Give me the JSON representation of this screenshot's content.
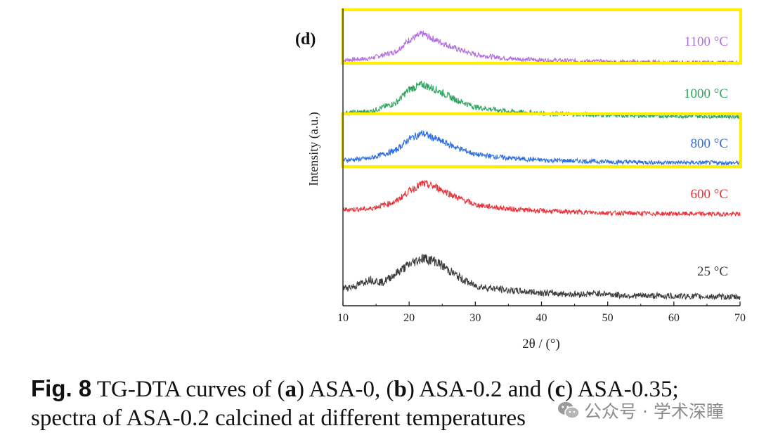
{
  "chart_data": {
    "type": "line",
    "panel_label": "(d)",
    "xlabel": "2θ / (°)",
    "ylabel": "Intensity (a.u.)",
    "xlim": [
      10,
      70
    ],
    "xticks": [
      "10",
      "20",
      "30",
      "40",
      "50",
      "60",
      "70"
    ],
    "y_ticks_shown": false,
    "legend": "inline labels at right end of each curve",
    "series": [
      {
        "name": "1100 °C",
        "color": "#b36ee0",
        "peak_2theta": 22,
        "highlighted": true,
        "profile": [
          [
            10,
            0.1
          ],
          [
            14,
            0.14
          ],
          [
            18,
            0.32
          ],
          [
            20,
            0.62
          ],
          [
            22,
            0.78
          ],
          [
            24,
            0.62
          ],
          [
            27,
            0.4
          ],
          [
            30,
            0.24
          ],
          [
            35,
            0.14
          ],
          [
            40,
            0.1
          ],
          [
            50,
            0.06
          ],
          [
            60,
            0.04
          ],
          [
            70,
            0.03
          ]
        ]
      },
      {
        "name": "1000 °C",
        "color": "#2ea660",
        "peak_2theta": 22,
        "highlighted": false,
        "profile": [
          [
            10,
            0.12
          ],
          [
            14,
            0.15
          ],
          [
            18,
            0.36
          ],
          [
            20,
            0.68
          ],
          [
            22,
            0.8
          ],
          [
            24,
            0.68
          ],
          [
            27,
            0.44
          ],
          [
            30,
            0.26
          ],
          [
            35,
            0.16
          ],
          [
            40,
            0.11
          ],
          [
            50,
            0.07
          ],
          [
            60,
            0.05
          ],
          [
            70,
            0.04
          ]
        ]
      },
      {
        "name": "800 °C",
        "color": "#2f6fe0",
        "peak_2theta": 22,
        "highlighted": true,
        "profile": [
          [
            10,
            0.1
          ],
          [
            14,
            0.14
          ],
          [
            18,
            0.34
          ],
          [
            20,
            0.62
          ],
          [
            22,
            0.76
          ],
          [
            24,
            0.62
          ],
          [
            27,
            0.42
          ],
          [
            30,
            0.24
          ],
          [
            35,
            0.15
          ],
          [
            40,
            0.1
          ],
          [
            50,
            0.06
          ],
          [
            60,
            0.04
          ],
          [
            70,
            0.03
          ]
        ]
      },
      {
        "name": "600 °C",
        "color": "#e8333a",
        "peak_2theta": 22.5,
        "highlighted": false,
        "profile": [
          [
            10,
            0.16
          ],
          [
            14,
            0.18
          ],
          [
            18,
            0.36
          ],
          [
            20,
            0.62
          ],
          [
            22,
            0.8
          ],
          [
            24,
            0.72
          ],
          [
            27,
            0.48
          ],
          [
            30,
            0.28
          ],
          [
            35,
            0.18
          ],
          [
            40,
            0.13
          ],
          [
            50,
            0.08
          ],
          [
            60,
            0.06
          ],
          [
            70,
            0.05
          ]
        ]
      },
      {
        "name": "25 °C",
        "color": "#3c3c3c",
        "peak_2theta": 22,
        "highlighted": false,
        "profile": [
          [
            10,
            0.2
          ],
          [
            12,
            0.24
          ],
          [
            14,
            0.36
          ],
          [
            16,
            0.3
          ],
          [
            18,
            0.46
          ],
          [
            20,
            0.62
          ],
          [
            22,
            0.74
          ],
          [
            24,
            0.68
          ],
          [
            26,
            0.52
          ],
          [
            28,
            0.36
          ],
          [
            30,
            0.24
          ],
          [
            35,
            0.16
          ],
          [
            40,
            0.12
          ],
          [
            45,
            0.09
          ],
          [
            49,
            0.11
          ],
          [
            52,
            0.07
          ],
          [
            60,
            0.06
          ],
          [
            70,
            0.04
          ]
        ]
      }
    ]
  },
  "caption": {
    "fig_label": "Fig. 8",
    "line1_parts": [
      "TG-DTA curves of (",
      "a",
      ") ASA-0, (",
      "b",
      ") ASA-0.2 and (",
      "c",
      ") ASA-0.35;"
    ],
    "line2": "spectra of ASA-0.2 calcined at different temperatures"
  },
  "watermark": {
    "text": "公众号 · 学术深瞳",
    "icon": "wechat-icon"
  },
  "colors": {
    "highlight_box": "#ffee00",
    "axis": "#222222"
  }
}
